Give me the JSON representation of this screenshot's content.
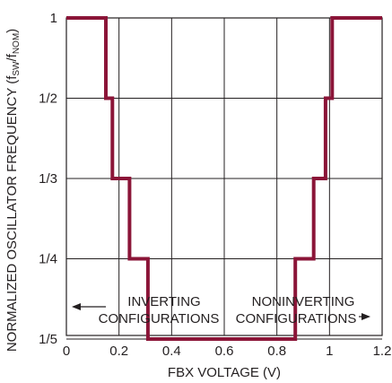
{
  "chart_data": {
    "type": "line",
    "title": "",
    "xlabel": "FBX VOLTAGE (V)",
    "ylabel": "NORMALIZED OSCILLATOR FREQUENCY (f_SW/f_NOM)",
    "ylabel_parts": {
      "prefix": "NORMALIZED OSCILLATOR FREQUENCY (f",
      "sub1": "SW",
      "mid": "/f",
      "sub2": "NOM",
      "suffix": ")"
    },
    "xlim": [
      0,
      1.2
    ],
    "ylim": [
      0,
      1
    ],
    "x_ticks": [
      0,
      0.2,
      0.4,
      0.6,
      0.8,
      1.0,
      1.2
    ],
    "x_tick_labels": [
      "0",
      "0.2",
      "0.4",
      "0.6",
      "0.8",
      "1",
      "1.2"
    ],
    "y_ticks": [
      1,
      0.5,
      0.3333,
      0.25,
      0.2
    ],
    "y_tick_labels": [
      "1",
      "1/2",
      "1/3",
      "1/4",
      "1/5"
    ],
    "y_scale": "reciprocal",
    "grid": true,
    "line_color": "#8b1538",
    "series": [
      {
        "x": [
          0,
          0.15,
          0.15,
          0.175,
          0.175,
          0.24,
          0.24,
          0.31,
          0.31,
          0.87,
          0.87,
          0.94,
          0.94,
          0.985,
          0.985,
          1.01,
          1.01,
          1.2
        ],
        "y": [
          1,
          1,
          0.5,
          0.5,
          0.3333,
          0.3333,
          0.25,
          0.25,
          0.2,
          0.2,
          0.25,
          0.25,
          0.3333,
          0.3333,
          0.5,
          0.5,
          1,
          1
        ]
      }
    ],
    "annotations": [
      {
        "lines": [
          "INVERTING",
          "CONFIGURATIONS"
        ],
        "arrow": "left"
      },
      {
        "lines": [
          "NONINVERTING",
          "CONFIGURATIONS"
        ],
        "arrow": "right"
      }
    ]
  }
}
